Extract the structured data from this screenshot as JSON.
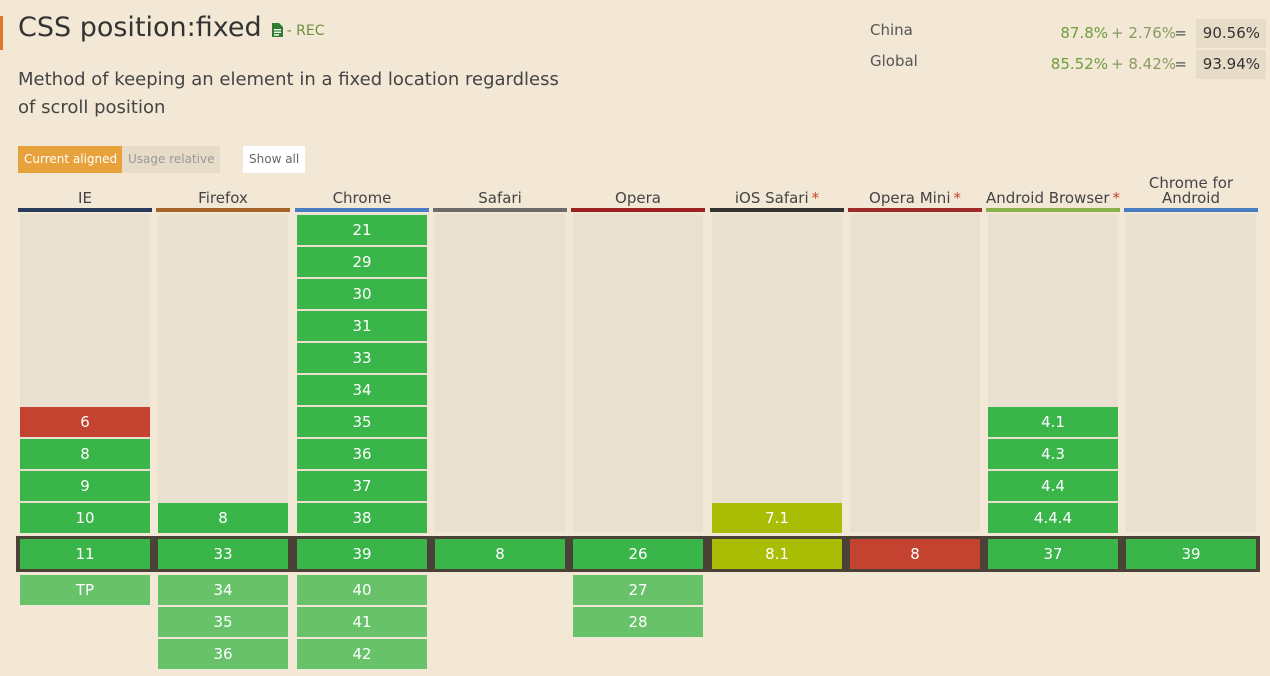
{
  "feature": {
    "title": "CSS position:fixed",
    "status": "- REC",
    "description": "Method of keeping an element in a fixed location regardless of scroll position"
  },
  "stats": [
    {
      "name": "China",
      "base": "87.8%",
      "partial": "+ 2.76%",
      "eq": "=",
      "total": "90.56%"
    },
    {
      "name": "Global",
      "base": "85.52%",
      "partial": "+ 8.42%",
      "eq": "=",
      "total": "93.94%"
    }
  ],
  "controls": {
    "current_aligned": "Current aligned",
    "usage_relative": "Usage relative",
    "show_all": "Show all"
  },
  "colors": {
    "supported": "#39b54a",
    "not_supported": "#c44230",
    "partial": "#a8bd04",
    "future": "#67c26a",
    "accent": "#e8a23b"
  },
  "browsers": [
    {
      "name": "IE",
      "star": "",
      "color": "#2a3a5c",
      "past": [
        {
          "v": "6",
          "s": "n"
        },
        {
          "v": "8",
          "s": "y"
        },
        {
          "v": "9",
          "s": "y"
        },
        {
          "v": "10",
          "s": "y"
        }
      ],
      "current": {
        "v": "11",
        "s": "y"
      },
      "future": [
        {
          "v": "TP",
          "s": "f"
        }
      ]
    },
    {
      "name": "Firefox",
      "star": "",
      "color": "#a8632a",
      "past": [
        {
          "v": "8",
          "s": "y"
        }
      ],
      "current": {
        "v": "33",
        "s": "y"
      },
      "future": [
        {
          "v": "34",
          "s": "f"
        },
        {
          "v": "35",
          "s": "f"
        },
        {
          "v": "36",
          "s": "f"
        }
      ]
    },
    {
      "name": "Chrome",
      "star": "",
      "color": "#4a7cc2",
      "past": [
        {
          "v": "21",
          "s": "y"
        },
        {
          "v": "29",
          "s": "y"
        },
        {
          "v": "30",
          "s": "y"
        },
        {
          "v": "31",
          "s": "y"
        },
        {
          "v": "33",
          "s": "y"
        },
        {
          "v": "34",
          "s": "y"
        },
        {
          "v": "35",
          "s": "y"
        },
        {
          "v": "36",
          "s": "y"
        },
        {
          "v": "37",
          "s": "y"
        },
        {
          "v": "38",
          "s": "y"
        }
      ],
      "current": {
        "v": "39",
        "s": "y"
      },
      "future": [
        {
          "v": "40",
          "s": "f"
        },
        {
          "v": "41",
          "s": "f"
        },
        {
          "v": "42",
          "s": "f"
        }
      ]
    },
    {
      "name": "Safari",
      "star": "",
      "color": "#6b6b6b",
      "past": [],
      "current": {
        "v": "8",
        "s": "y"
      },
      "future": []
    },
    {
      "name": "Opera",
      "star": "",
      "color": "#9c2222",
      "past": [],
      "current": {
        "v": "26",
        "s": "y"
      },
      "future": [
        {
          "v": "27",
          "s": "f"
        },
        {
          "v": "28",
          "s": "f"
        }
      ]
    },
    {
      "name": "iOS Safari",
      "star": "*",
      "color": "#333333",
      "past": [
        {
          "v": "7.1",
          "s": "a"
        }
      ],
      "current": {
        "v": "8.1",
        "s": "a"
      },
      "future": []
    },
    {
      "name": "Opera Mini",
      "star": "*",
      "color": "#a02a2a",
      "past": [],
      "current": {
        "v": "8",
        "s": "n"
      },
      "future": []
    },
    {
      "name": "Android Browser",
      "star": "*",
      "color": "#8ab04a",
      "past": [
        {
          "v": "4.1",
          "s": "y"
        },
        {
          "v": "4.3",
          "s": "y"
        },
        {
          "v": "4.4",
          "s": "y"
        },
        {
          "v": "4.4.4",
          "s": "y"
        }
      ],
      "current": {
        "v": "37",
        "s": "y"
      },
      "future": []
    },
    {
      "name": "Chrome for Android",
      "star": "",
      "color": "#4a7cc2",
      "past": [],
      "current": {
        "v": "39",
        "s": "y"
      },
      "future": []
    }
  ]
}
